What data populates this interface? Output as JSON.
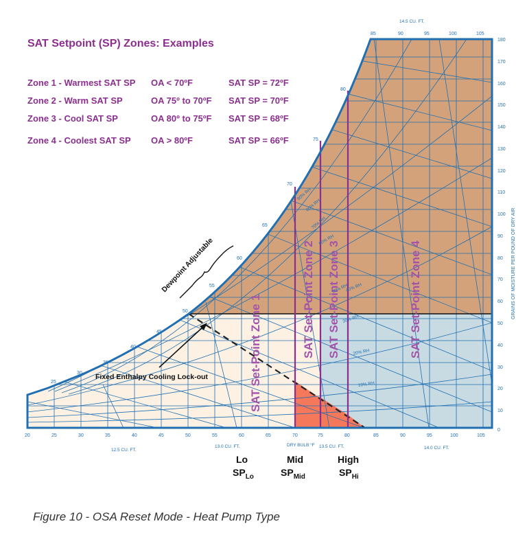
{
  "title": "SAT Setpoint (SP) Zones: Examples",
  "zones_table": [
    {
      "zone": "Zone 1 - Warmest SAT SP",
      "oa": "OA < 70ºF",
      "sp": "SAT SP = 72ºF"
    },
    {
      "zone": "Zone 2 - Warm SAT SP",
      "oa": "OA 75º to 70ºF",
      "sp": "SAT SP = 70ºF"
    },
    {
      "zone": "Zone 3 - Cool SAT SP",
      "oa": "OA 80º to 75ºF",
      "sp": "SAT SP = 68ºF"
    },
    {
      "zone": "Zone 4 - Coolest SAT SP",
      "oa": "OA > 80ºF",
      "sp": "SAT SP = 66ºF"
    }
  ],
  "chart": {
    "x_ticks": [
      "20",
      "25",
      "30",
      "35",
      "40",
      "45",
      "50",
      "55",
      "60",
      "65",
      "70",
      "75",
      "80",
      "85",
      "90",
      "95",
      "100",
      "105"
    ],
    "top_ticks": [
      "85",
      "90",
      "95",
      "100",
      "105"
    ],
    "y_ticks": [
      "180",
      "170",
      "160",
      "150",
      "140",
      "130",
      "120",
      "110",
      "100",
      "90",
      "80",
      "70",
      "60",
      "50",
      "40",
      "30",
      "20",
      "10",
      "0"
    ],
    "y_axis_label": "GRAINS OF MOISTURE PER POUND OF DRY AIR",
    "x_axis_label": "DRY BULB °F",
    "saturation_labels": [
      "25",
      "30",
      "35",
      "40",
      "45",
      "50",
      "55",
      "60",
      "65",
      "70",
      "75",
      "80"
    ],
    "volume_labels": [
      "12.5 CU. FT.",
      "13.0 CU. FT.",
      "13.5 CU. FT.",
      "14.0 CU. FT.",
      "14.5 CU. FT."
    ],
    "rh_labels": [
      "90% RH",
      "80% RH",
      "70% RH",
      "60% RH",
      "50% RH",
      "40% RH",
      "30% RH",
      "20% RH",
      "10% RH"
    ],
    "zone_labels": [
      "SAT Set-Point Zone 1",
      "SAT Set-Point Zone 2",
      "SAT Set-Point Zone 3",
      "SAT Set-Point Zone 4"
    ],
    "dewpoint_label": "Dewpoint Adjustable",
    "enthalpy_label": "Fixed Enthalpy Cooling Lock-out"
  },
  "setpoints": [
    {
      "name": "Lo",
      "sp": "SP",
      "sub": "Lo"
    },
    {
      "name": "Mid",
      "sp": "SP",
      "sub": "Mid"
    },
    {
      "name": "High",
      "sp": "SP",
      "sub": "Hi"
    }
  ],
  "caption": "Figure 10 - OSA Reset Mode - Heat Pump Type",
  "colors": {
    "tan": "#d3a27a",
    "cream": "#fcf1e3",
    "light_blue": "#c8dae2",
    "salmon": "#f5785b",
    "chart_blue": "#1f6fb2",
    "purple": "#8b2f8f"
  }
}
